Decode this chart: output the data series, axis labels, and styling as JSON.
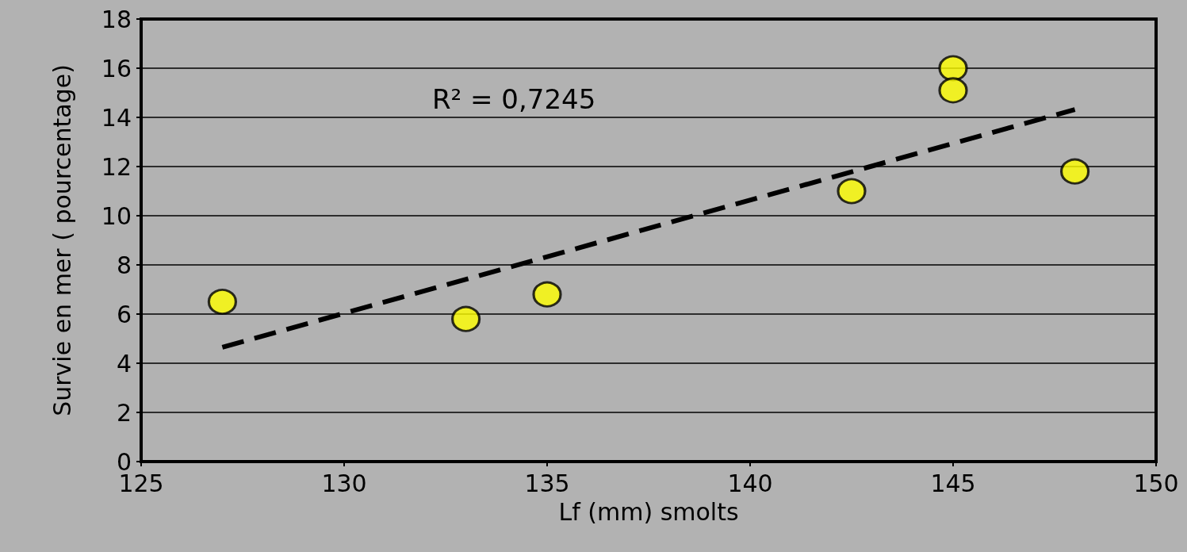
{
  "chart_data": {
    "type": "scatter",
    "xlabel": "Lf (mm) smolts",
    "ylabel": "Survie en mer ( pourcentage)",
    "xlim": [
      125,
      150
    ],
    "xticks": [
      125,
      130,
      135,
      140,
      145,
      150
    ],
    "ylim": [
      0,
      18
    ],
    "yticks": [
      0,
      2,
      4,
      6,
      8,
      10,
      12,
      14,
      16,
      18
    ],
    "grid": "y",
    "marker": "circle",
    "annotations": [
      "R² = 0,7245"
    ],
    "series": [
      {
        "color": "#ffff00",
        "x": [
          127,
          133,
          135,
          142.5,
          145,
          145,
          148
        ],
        "values": [
          6.5,
          5.8,
          6.8,
          11,
          16,
          15.1,
          11.8
        ]
      },
      {
        "type": "line",
        "color": "#000000",
        "line_style": "dashed",
        "marker": "none",
        "x": [
          127,
          148
        ],
        "values": [
          4.65,
          14.32
        ]
      }
    ]
  }
}
